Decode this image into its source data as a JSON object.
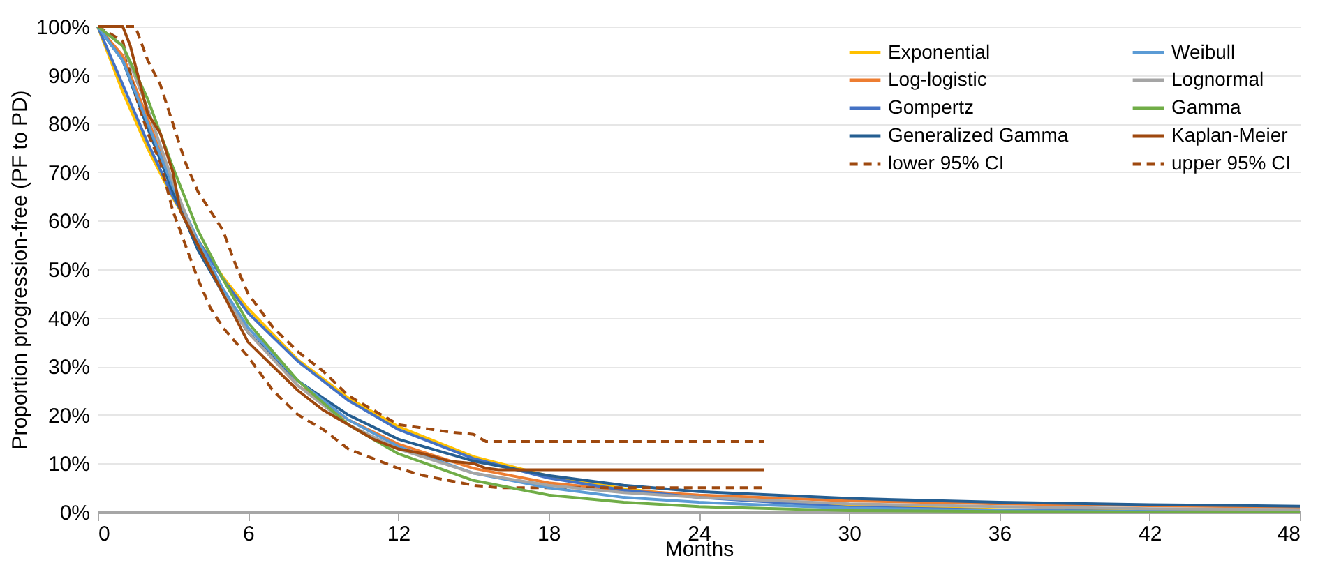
{
  "chart_data": {
    "type": "line",
    "xlabel": "Months",
    "ylabel": "Proportion progression-free (PF to PD)",
    "xlim": [
      0,
      48
    ],
    "xticks": [
      0,
      6,
      12,
      18,
      24,
      30,
      36,
      42,
      48
    ],
    "ylim": [
      0,
      100
    ],
    "yticks": [
      {
        "value": 0,
        "label": "0%"
      },
      {
        "value": 10,
        "label": "10%"
      },
      {
        "value": 20,
        "label": "20%"
      },
      {
        "value": 30,
        "label": "30%"
      },
      {
        "value": 40,
        "label": "40%"
      },
      {
        "value": 50,
        "label": "50%"
      },
      {
        "value": 60,
        "label": "60%"
      },
      {
        "value": 70,
        "label": "70%"
      },
      {
        "value": 80,
        "label": "80%"
      },
      {
        "value": 90,
        "label": "90%"
      },
      {
        "value": 100,
        "label": "100%"
      }
    ],
    "grid": "y",
    "legend": "top right",
    "marker": "none",
    "x": [
      0,
      1,
      2,
      3,
      4,
      5,
      6,
      8,
      10,
      12,
      15,
      18,
      21,
      24,
      30,
      36,
      42,
      48
    ],
    "series": [
      {
        "name": "Exponential",
        "color": "#ffc000",
        "line_style": "solid",
        "values": [
          100,
          86.5,
          74.8,
          64.7,
          56,
          48.4,
          41.9,
          31.3,
          23.5,
          17.6,
          11.4,
          7.4,
          4.8,
          3.1,
          1.3,
          0.5,
          0.2,
          0.1
        ]
      },
      {
        "name": "Log-logistic",
        "color": "#ed7d31",
        "line_style": "solid",
        "values": [
          100,
          94,
          81,
          67,
          55,
          45,
          37,
          26,
          19,
          14,
          9,
          6,
          4.5,
          3.5,
          2.3,
          1.7,
          1.3,
          1
        ]
      },
      {
        "name": "Gompertz",
        "color": "#4472c4",
        "line_style": "solid",
        "values": [
          100,
          88,
          76,
          65,
          56,
          48,
          41,
          31,
          23,
          17,
          11,
          7,
          4.5,
          3,
          1,
          0.4,
          0.1,
          0
        ]
      },
      {
        "name": "Generalized Gamma",
        "color": "#255e91",
        "line_style": "solid",
        "values": [
          100,
          93,
          79,
          66,
          54,
          45,
          37,
          27,
          20,
          15,
          10.5,
          7.5,
          5.5,
          4.2,
          2.8,
          2,
          1.5,
          1.2
        ]
      },
      {
        "name": "lower 95% CI",
        "color": "#9e480e",
        "line_style": "dashed",
        "x": [
          0,
          1,
          1.5,
          2,
          2.5,
          3,
          3.5,
          4,
          4.5,
          5,
          6,
          7,
          8,
          9,
          10,
          11,
          12,
          13,
          14,
          15,
          16,
          26.6
        ],
        "values": [
          100,
          97,
          86,
          78,
          72,
          62,
          55,
          48,
          42,
          38,
          32,
          25,
          20,
          17,
          13,
          11,
          9,
          7.5,
          6.5,
          5.5,
          5,
          5
        ]
      },
      {
        "name": "Weibull",
        "color": "#5b9bd5",
        "line_style": "solid",
        "values": [
          100,
          93,
          80,
          67,
          56,
          46,
          38,
          27,
          19,
          13.5,
          8,
          5,
          3,
          2,
          0.8,
          0.3,
          0.1,
          0
        ]
      },
      {
        "name": "Lognormal",
        "color": "#a5a5a5",
        "line_style": "solid",
        "values": [
          100,
          96,
          83,
          68,
          55,
          45,
          37,
          26,
          18,
          13,
          8,
          5.5,
          4,
          3,
          1.7,
          1.1,
          0.7,
          0.5
        ]
      },
      {
        "name": "Gamma",
        "color": "#70ad47",
        "line_style": "solid",
        "values": [
          100,
          96,
          85,
          71,
          58,
          48,
          39,
          27,
          18,
          12,
          6.5,
          3.5,
          2,
          1.1,
          0.3,
          0.1,
          0,
          0
        ]
      },
      {
        "name": "Kaplan-Meier",
        "color": "#9e480e",
        "line_style": "solid",
        "x": [
          0,
          1,
          1.3,
          1.6,
          2,
          2.5,
          3,
          3.3,
          4,
          4.5,
          5,
          5.5,
          6,
          7,
          8,
          9,
          10,
          11,
          12,
          13,
          14,
          15,
          15.5,
          16,
          26.6
        ],
        "values": [
          100,
          100,
          96,
          90,
          82,
          78,
          70,
          62,
          55,
          50,
          45,
          40,
          35,
          30,
          25,
          21,
          18,
          15,
          13,
          12,
          10.5,
          10,
          9,
          8.7,
          8.7
        ]
      },
      {
        "name": "upper 95% CI",
        "color": "#9e480e",
        "line_style": "dashed",
        "x": [
          0,
          1.5,
          2,
          2.5,
          3,
          3.5,
          4,
          5,
          5.5,
          6,
          7,
          8,
          9,
          10,
          11,
          12,
          14,
          15,
          15.5,
          26.6
        ],
        "values": [
          100,
          100,
          93,
          88,
          80,
          72,
          66,
          58,
          51,
          45,
          38,
          33,
          29,
          24,
          21,
          18,
          16.5,
          16,
          14.5,
          14.5
        ]
      }
    ]
  }
}
